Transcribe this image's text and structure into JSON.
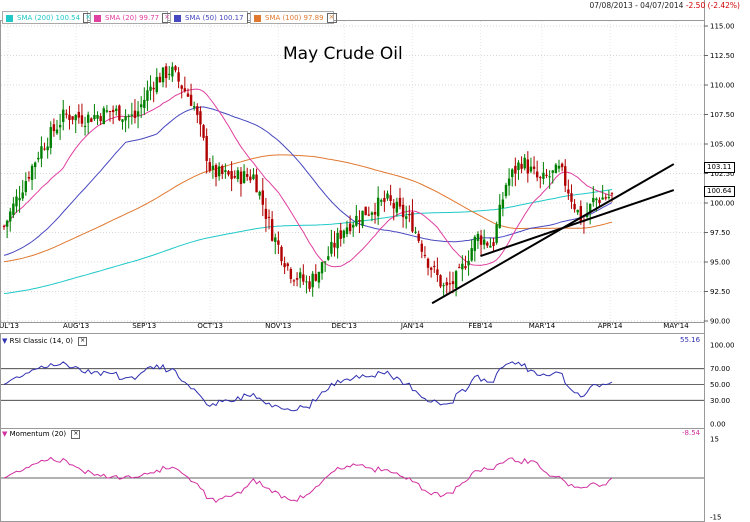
{
  "header": {
    "range": "07/08/2013 - 04/07/2014",
    "change": "-2.50 (-2.42%)"
  },
  "title": "May Crude Oil",
  "legend": [
    {
      "label": "SMA (200) 100.54",
      "color": "#20c8c8"
    },
    {
      "label": "SMA (20) 99.77",
      "color": "#e040a0"
    },
    {
      "label": "SMA (50) 100.17",
      "color": "#4848c0"
    },
    {
      "label": "SMA (100) 97.89",
      "color": "#e07830"
    }
  ],
  "price_tags": {
    "upper": "103.11",
    "lower": "100.64"
  },
  "rsi": {
    "label": "RSI Classic (14, 0)",
    "value": "55.16",
    "color": "#3030b0"
  },
  "momentum": {
    "label": "Momentum (20)",
    "value": "-8.54",
    "color": "#d030a0"
  },
  "chart_data": [
    {
      "type": "candlestick",
      "xlabels": [
        "JUL'13",
        "AUG'13",
        "SEP'13",
        "OCT'13",
        "NOV'13",
        "DEC'13",
        "JAN'14",
        "FEB'14",
        "MAR'14",
        "APR'14",
        "MAY'14"
      ],
      "ylim": [
        90,
        115
      ],
      "ytick_labels": [
        "115.00",
        "112.50",
        "110.00",
        "107.50",
        "105.00",
        "102.50",
        "100.00",
        "97.50",
        "95.00",
        "92.50",
        "90.00"
      ],
      "up_color": "#008000",
      "down_color": "#b00000",
      "trendlines": [
        {
          "from": [
            "2014-01-10",
            91.5
          ],
          "to": [
            "2014-04-30",
            103.3
          ]
        },
        {
          "from": [
            "2014-02-01",
            95.5
          ],
          "to": [
            "2014-04-30",
            101.1
          ]
        }
      ]
    },
    {
      "type": "line",
      "series": "RSI",
      "ylim": [
        0,
        100
      ],
      "ytick_labels": [
        "100.00",
        "70.00",
        "50.00",
        "30.00",
        "0.00"
      ],
      "ref_lines": [
        70,
        50,
        30
      ]
    },
    {
      "type": "line",
      "series": "Momentum",
      "ylim": [
        -15,
        15
      ],
      "ytick_labels": [
        "15",
        "-15"
      ],
      "ref_lines": [
        0
      ]
    }
  ]
}
